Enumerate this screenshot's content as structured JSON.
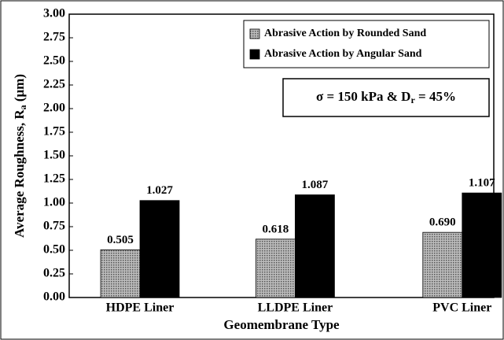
{
  "chart_data": {
    "type": "bar",
    "x_label": "Geomembrane Type",
    "y_label": [
      "Average Roughness, R",
      "a",
      " (μm)"
    ],
    "annotation": [
      "σ = 150 kPa & D",
      "r",
      " = 45%"
    ],
    "categories": [
      "HDPE Liner",
      "LLDPE Liner",
      "PVC Liner"
    ],
    "series": [
      {
        "name": "Abrasive Action by Rounded Sand",
        "color": "#8c8c8c",
        "values": [
          0.505,
          0.618,
          0.69
        ],
        "value_labels": [
          "0.505",
          "0.618",
          "0.690"
        ]
      },
      {
        "name": "Abrasive Action by Angular Sand",
        "color": "#000000",
        "values": [
          1.027,
          1.087,
          1.107
        ],
        "value_labels": [
          "1.027",
          "1.087",
          "1.107"
        ]
      }
    ],
    "ylim": [
      0,
      3
    ],
    "yticks": [
      {
        "value": 0,
        "label": "0.00"
      },
      {
        "value": 0.25,
        "label": "0.25"
      },
      {
        "value": 0.5,
        "label": "0.50"
      },
      {
        "value": 0.75,
        "label": "0.75"
      },
      {
        "value": 1,
        "label": "1.00"
      },
      {
        "value": 1.25,
        "label": "1.25"
      },
      {
        "value": 1.5,
        "label": "1.50"
      },
      {
        "value": 1.75,
        "label": "1.75"
      },
      {
        "value": 2,
        "label": "2.00"
      },
      {
        "value": 2.25,
        "label": "2.25"
      },
      {
        "value": 2.5,
        "label": "2.50"
      },
      {
        "value": 2.75,
        "label": "2.75"
      },
      {
        "value": 3,
        "label": "3.00"
      }
    ],
    "grid": false,
    "legend": "upper right"
  }
}
